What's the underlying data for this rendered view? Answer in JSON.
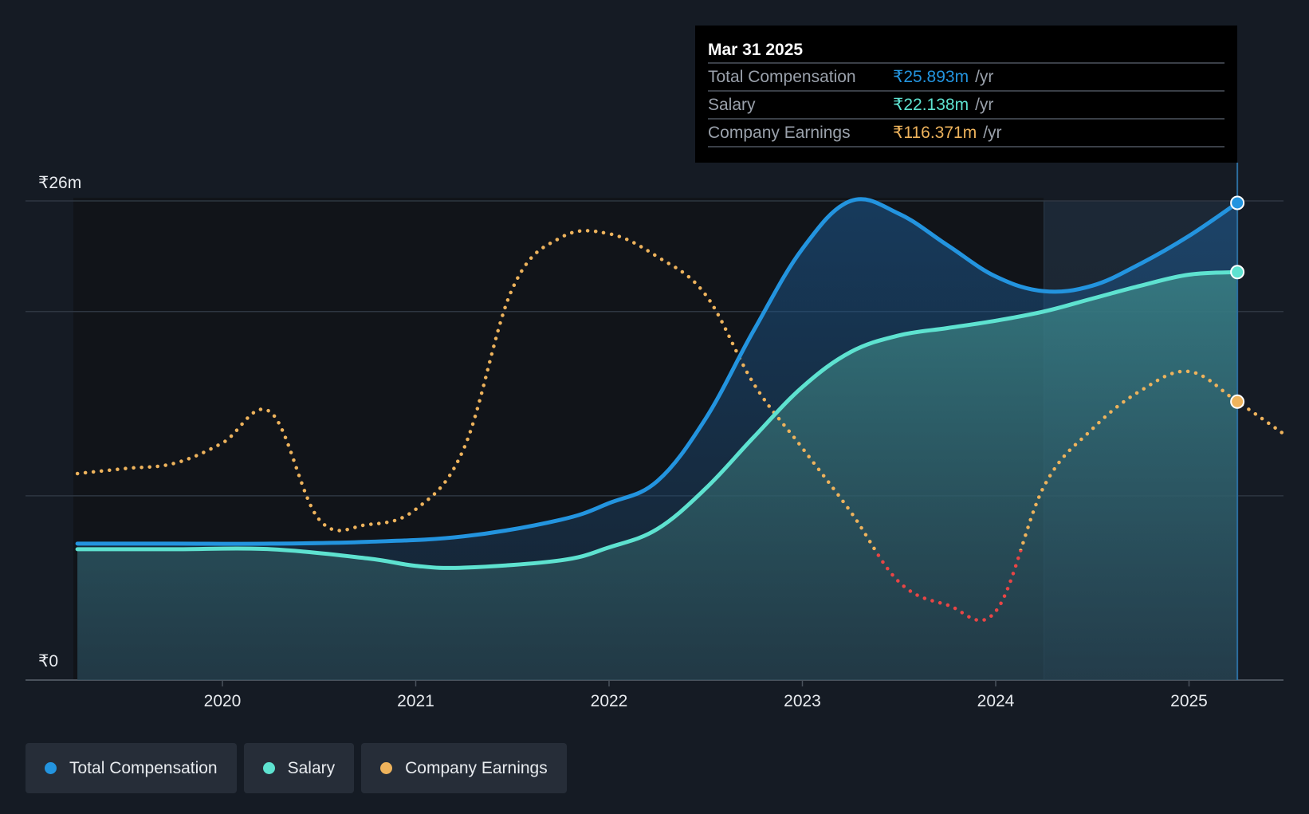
{
  "colors": {
    "background": "#151b24",
    "total": "#2394df",
    "salary": "#5ee2d0",
    "earnings": "#eeb35c",
    "earnings_negative": "#e94545",
    "grid": "#2e3641",
    "text": "#e8ebef"
  },
  "tooltip": {
    "date": "Mar 31 2025",
    "rows": [
      {
        "label": "Total Compensation",
        "value": "₹25.893m",
        "unit": "/yr"
      },
      {
        "label": "Salary",
        "value": "₹22.138m",
        "unit": "/yr"
      },
      {
        "label": "Company Earnings",
        "value": "₹116.371m",
        "unit": "/yr"
      }
    ]
  },
  "legend": [
    {
      "label": "Total Compensation",
      "icon": "dot-icon"
    },
    {
      "label": "Salary",
      "icon": "dot-icon"
    },
    {
      "label": "Company Earnings",
      "icon": "dot-icon"
    }
  ],
  "chart_data": {
    "type": "area",
    "title": "",
    "xlabel": "",
    "ylabel": "",
    "y_axis_labels": [
      "₹26m",
      "₹0"
    ],
    "ylim": [
      0,
      26
    ],
    "xlim": [
      2019.25,
      2025.5
    ],
    "x_ticks": [
      2020,
      2021,
      2022,
      2023,
      2024,
      2025
    ],
    "x_tick_labels": [
      "2020",
      "2021",
      "2022",
      "2023",
      "2024",
      "2025"
    ],
    "y_gridlines": [
      0,
      10,
      20,
      26
    ],
    "highlight_band": [
      2024.25,
      2025.25
    ],
    "series": [
      {
        "name": "Total Compensation",
        "unit": "₹m/yr",
        "x": [
          2019.25,
          2019.75,
          2020.25,
          2020.75,
          2021.25,
          2021.75,
          2022.0,
          2022.25,
          2022.5,
          2022.75,
          2023.0,
          2023.25,
          2023.5,
          2023.75,
          2024.0,
          2024.25,
          2024.5,
          2024.75,
          2025.0,
          2025.25
        ],
        "y": [
          7.4,
          7.4,
          7.4,
          7.5,
          7.8,
          8.7,
          9.6,
          10.8,
          14.2,
          19.0,
          23.4,
          26.0,
          25.3,
          23.6,
          21.9,
          21.1,
          21.4,
          22.6,
          24.1,
          25.893
        ]
      },
      {
        "name": "Salary",
        "unit": "₹m/yr",
        "x": [
          2019.25,
          2019.75,
          2020.25,
          2020.75,
          2021.0,
          2021.25,
          2021.75,
          2022.0,
          2022.25,
          2022.5,
          2022.75,
          2023.0,
          2023.25,
          2023.5,
          2023.75,
          2024.0,
          2024.25,
          2024.5,
          2024.75,
          2025.0,
          2025.25
        ],
        "y": [
          7.1,
          7.1,
          7.1,
          6.6,
          6.2,
          6.1,
          6.5,
          7.2,
          8.2,
          10.4,
          13.2,
          15.9,
          17.8,
          18.7,
          19.1,
          19.5,
          20.0,
          20.7,
          21.4,
          22.0,
          22.138
        ]
      },
      {
        "name": "Company Earnings",
        "unit": "₹m/yr",
        "x": [
          2019.25,
          2019.5,
          2019.75,
          2020.0,
          2020.25,
          2020.5,
          2020.75,
          2021.0,
          2021.25,
          2021.5,
          2021.75,
          2022.0,
          2022.25,
          2022.5,
          2022.75,
          2023.0,
          2023.25,
          2023.5,
          2023.75,
          2024.0,
          2024.25,
          2024.5,
          2024.75,
          2025.0,
          2025.25,
          2025.5
        ],
        "y": [
          60,
          64,
          68,
          84,
          108,
          24,
          20,
          32,
          80,
          205,
          245,
          248,
          230,
          200,
          130,
          80,
          30,
          -25,
          -43,
          -48,
          50,
          95,
          125,
          140,
          116.371,
          90
        ]
      }
    ]
  }
}
